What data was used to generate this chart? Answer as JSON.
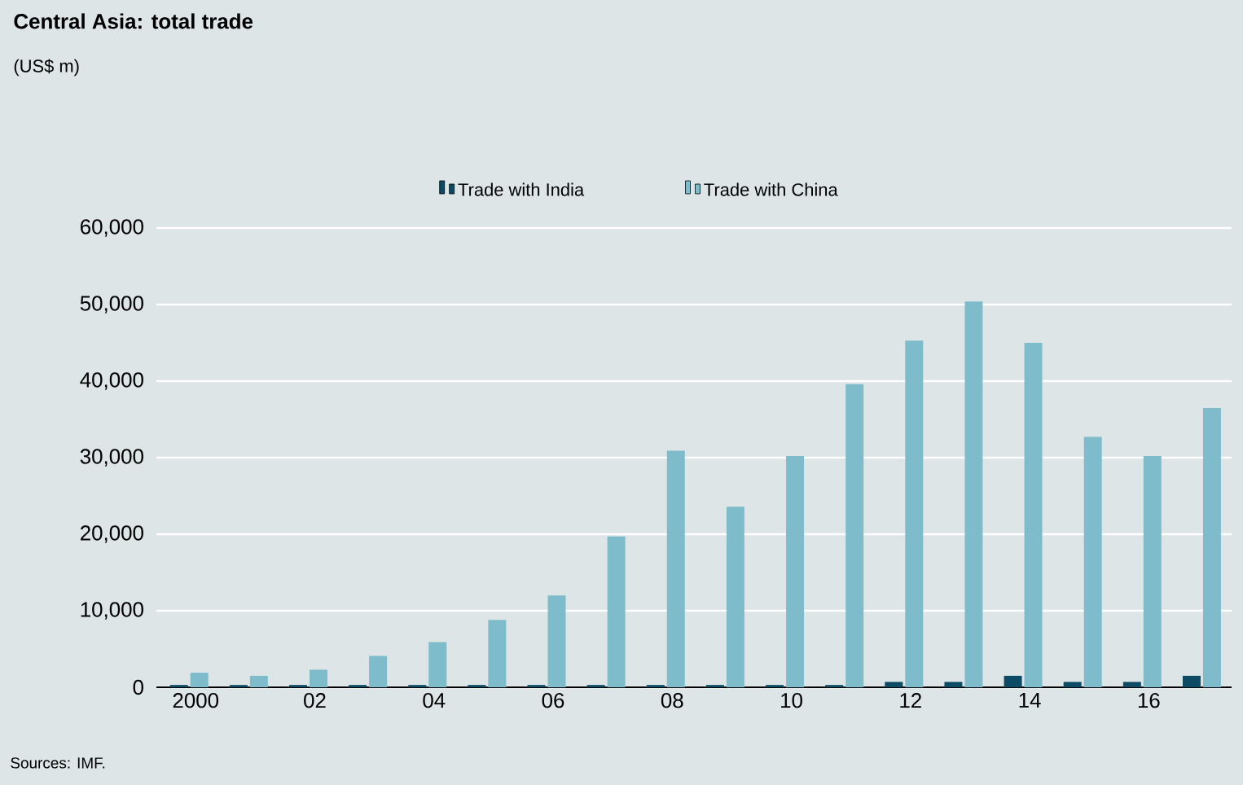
{
  "chart_data": {
    "type": "bar",
    "title": "Central Asia: total trade",
    "subtitle": "(US$ m)",
    "categories": [
      "2000",
      null,
      "02",
      null,
      "04",
      null,
      "06",
      null,
      "08",
      null,
      "10",
      null,
      "12",
      null,
      "14",
      null,
      "16",
      null
    ],
    "series": [
      {
        "name": "Trade with India",
        "color": "#0d4a63",
        "values": [
          300,
          300,
          300,
          300,
          300,
          300,
          300,
          300,
          300,
          300,
          300,
          300,
          700,
          700,
          1500,
          700,
          700,
          1500
        ]
      },
      {
        "name": "Trade with China",
        "color": "#7fbccb",
        "values": [
          1900,
          1500,
          2300,
          4100,
          5900,
          8800,
          12000,
          19700,
          30900,
          23600,
          30200,
          39600,
          45300,
          50400,
          45000,
          32700,
          30200,
          36500
        ]
      }
    ],
    "ylim": [
      0,
      60000
    ],
    "yticks": [
      0,
      {
        "value": 10000,
        "label": "10,000"
      },
      {
        "value": 20000,
        "label": "20,000"
      },
      {
        "value": 30000,
        "label": "30,000"
      },
      {
        "value": 40000,
        "label": "40,000"
      },
      {
        "value": 50000,
        "label": "50,000"
      },
      {
        "value": 60000,
        "label": "60,000"
      }
    ],
    "grid": "y",
    "legend": "top",
    "annotations": [
      "Sources: IMF."
    ]
  }
}
